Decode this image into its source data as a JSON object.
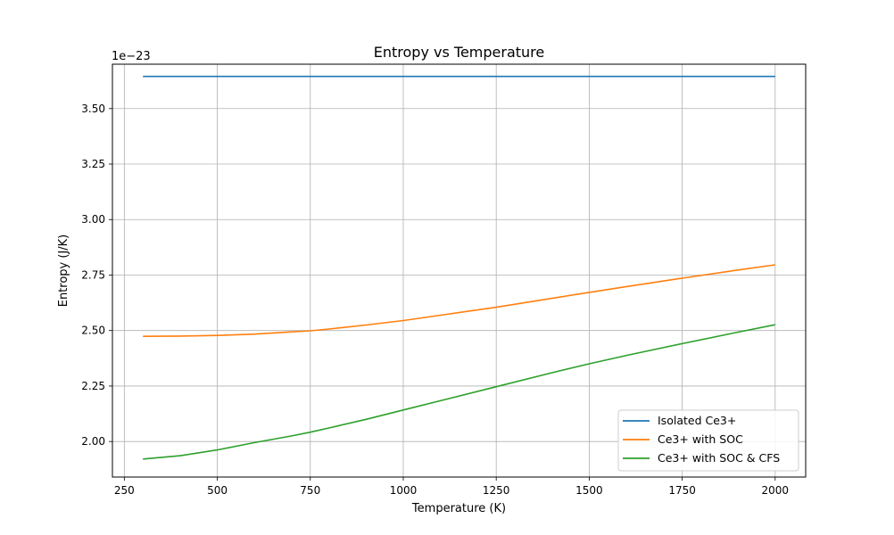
{
  "chart_data": {
    "type": "line",
    "title": "Entropy vs Temperature",
    "xlabel": "Temperature (K)",
    "ylabel": "Entropy (J/K)",
    "y_offset_label": "1e−23",
    "xlim": [
      218,
      2082
    ],
    "ylim": [
      1.84,
      3.7
    ],
    "x_ticks": [
      250,
      500,
      750,
      1000,
      1250,
      1500,
      1750,
      2000
    ],
    "y_ticks": [
      2.0,
      2.25,
      2.5,
      2.75,
      3.0,
      3.25,
      3.5
    ],
    "y_tick_labels": [
      "2.00",
      "2.25",
      "2.50",
      "2.75",
      "3.00",
      "3.25",
      "3.50"
    ],
    "grid": true,
    "legend_position": "lower-right",
    "series": [
      {
        "name": "Isolated Ce3+",
        "color": "#1f77b4",
        "x": [
          300,
          500,
          750,
          1000,
          1250,
          1500,
          1750,
          2000
        ],
        "y": [
          3.645,
          3.645,
          3.645,
          3.645,
          3.645,
          3.645,
          3.645,
          3.645
        ]
      },
      {
        "name": "Ce3+ with SOC",
        "color": "#ff7f0e",
        "x": [
          300,
          400,
          500,
          600,
          700,
          750,
          800,
          900,
          1000,
          1100,
          1250,
          1400,
          1500,
          1600,
          1750,
          1900,
          2000
        ],
        "y": [
          2.474,
          2.475,
          2.478,
          2.484,
          2.494,
          2.499,
          2.507,
          2.525,
          2.545,
          2.569,
          2.605,
          2.645,
          2.672,
          2.698,
          2.736,
          2.773,
          2.796
        ]
      },
      {
        "name": "Ce3+ with SOC & CFS",
        "color": "#2ca02c",
        "x": [
          300,
          400,
          500,
          600,
          700,
          750,
          800,
          900,
          1000,
          1100,
          1250,
          1400,
          1500,
          1600,
          1750,
          1900,
          2000
        ],
        "y": [
          1.921,
          1.936,
          1.962,
          1.995,
          2.025,
          2.042,
          2.061,
          2.1,
          2.142,
          2.184,
          2.247,
          2.31,
          2.35,
          2.388,
          2.441,
          2.493,
          2.526
        ]
      }
    ]
  }
}
